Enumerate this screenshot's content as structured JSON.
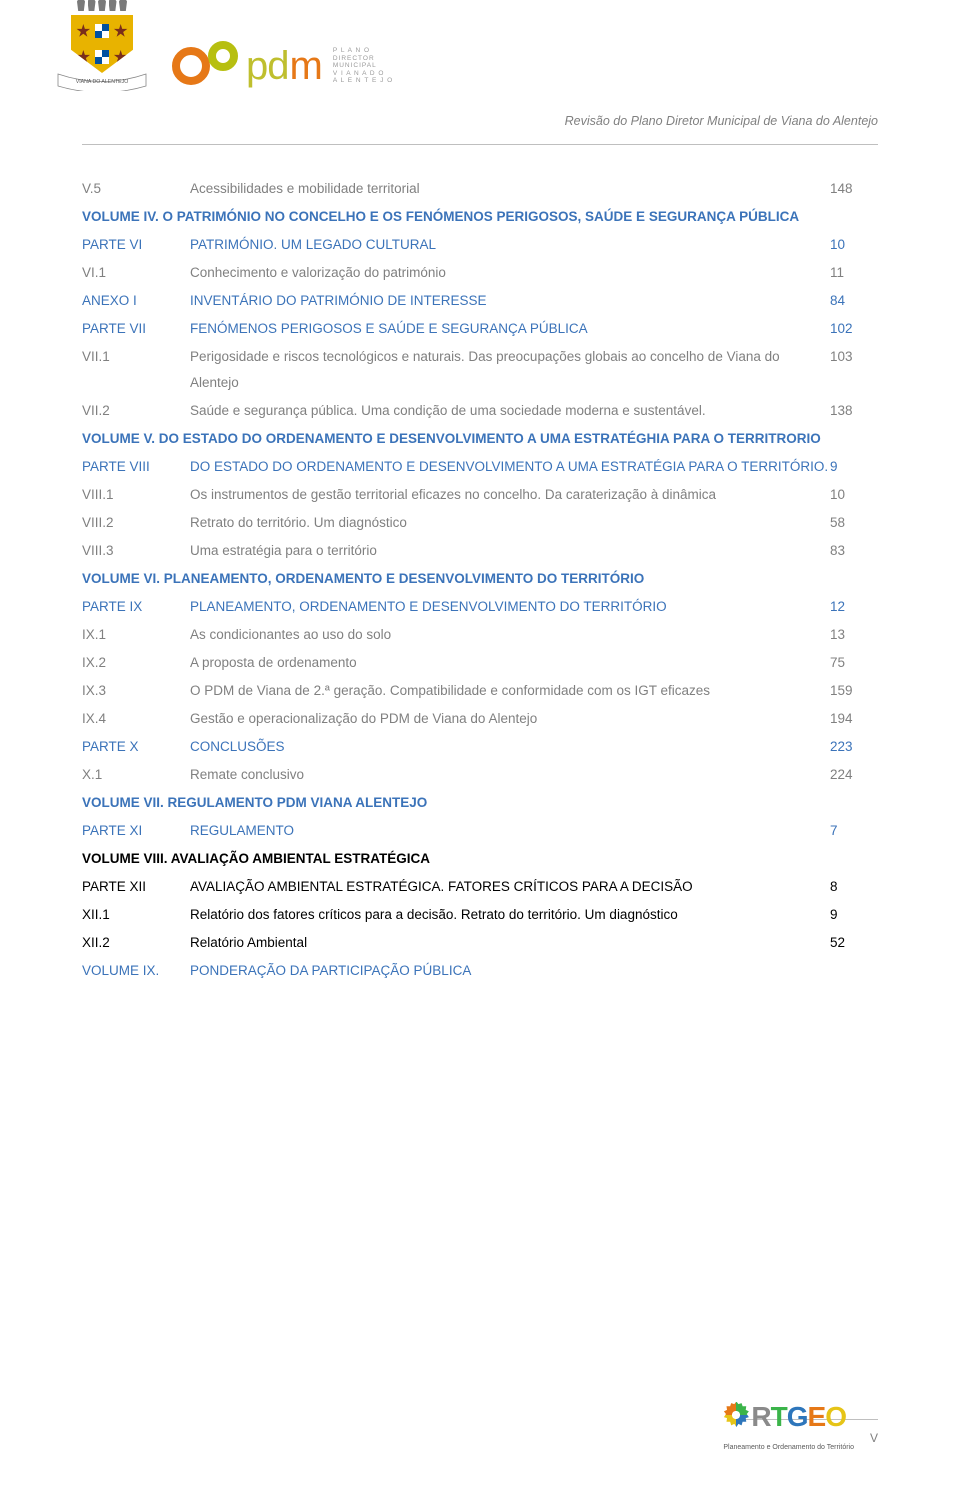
{
  "header": {
    "subtitle": "Revisão do Plano Diretor Municipal de Viana do Alentejo",
    "banner_text": "VIANA DO ALENTEJO",
    "pdm_letters": {
      "p": "p",
      "d": "d",
      "m": "m"
    },
    "plano_lines": [
      "P L A N O",
      "DIRECTOR",
      "MUNICIPAL",
      "V I A N A  D O",
      "A L E N T E J O"
    ]
  },
  "toc": [
    {
      "key": "V.5",
      "text": "Acessibilidades e mobilidade territorial",
      "page": "148",
      "style": "gray"
    },
    {
      "key": "",
      "text": "VOLUME IV. O PATRIMÓNIO NO CONCELHO E OS FENÓMENOS PERIGOSOS, SAÚDE E SEGURANÇA PÚBLICA",
      "page": "",
      "style": "blue-header-span"
    },
    {
      "key": "PARTE VI",
      "text": "PATRIMÓNIO. UM LEGADO CULTURAL",
      "page": "10",
      "style": "blue"
    },
    {
      "key": "VI.1",
      "text": "Conhecimento e valorização do património",
      "page": "11",
      "style": "gray"
    },
    {
      "key": "ANEXO I",
      "text": "INVENTÁRIO DO PATRIMÓNIO DE INTERESSE",
      "page": "84",
      "style": "blue"
    },
    {
      "key": "PARTE VII",
      "text": "FENÓMENOS PERIGOSOS E SAÚDE E SEGURANÇA PÚBLICA",
      "page": "102",
      "style": "blue"
    },
    {
      "key": "VII.1",
      "text": "Perigosidade e riscos tecnológicos e naturais. Das preocupações globais ao concelho de Viana do Alentejo",
      "page": "103",
      "style": "gray"
    },
    {
      "key": "VII.2",
      "text": "Saúde e segurança pública. Uma condição de uma sociedade moderna e sustentável.",
      "page": "138",
      "style": "gray"
    },
    {
      "key": "",
      "text": "VOLUME V. DO ESTADO DO ORDENAMENTO E DESENVOLVIMENTO A UMA ESTRATÉGHIA PARA O TERRITRORIO",
      "page": "",
      "style": "blue-header-span"
    },
    {
      "key": "PARTE VIII",
      "text": "DO ESTADO DO ORDENAMENTO E DESENVOLVIMENTO A UMA ESTRATÉGIA PARA O TERRITÓRIO.",
      "page": "9",
      "style": "blue"
    },
    {
      "key": "VIII.1",
      "text": "Os instrumentos de gestão territorial eficazes no concelho. Da caraterização à dinâmica",
      "page": "10",
      "style": "gray"
    },
    {
      "key": "VIII.2",
      "text": "Retrato do território. Um diagnóstico",
      "page": "58",
      "style": "gray"
    },
    {
      "key": "VIII.3",
      "text": "Uma estratégia para o território",
      "page": "83",
      "style": "gray"
    },
    {
      "key": "",
      "text": "VOLUME VI. PLANEAMENTO, ORDENAMENTO E DESENVOLVIMENTO DO TERRITÓRIO",
      "page": "",
      "style": "blue-header-span"
    },
    {
      "key": "PARTE IX",
      "text": "PLANEAMENTO, ORDENAMENTO E DESENVOLVIMENTO DO TERRITÓRIO",
      "page": "12",
      "style": "blue"
    },
    {
      "key": "IX.1",
      "text": "As condicionantes ao uso do solo",
      "page": "13",
      "style": "gray"
    },
    {
      "key": "IX.2",
      "text": "A proposta de ordenamento",
      "page": "75",
      "style": "gray"
    },
    {
      "key": "IX.3",
      "text": "O PDM de Viana de 2.ª geração. Compatibilidade e conformidade com os IGT eficazes",
      "page": "159",
      "style": "gray"
    },
    {
      "key": "IX.4",
      "text": "Gestão e operacionalização do PDM de Viana do Alentejo",
      "page": "194",
      "style": "gray"
    },
    {
      "key": "PARTE X",
      "text": "CONCLUSÕES",
      "page": "223",
      "style": "blue"
    },
    {
      "key": "X.1",
      "text": "Remate conclusivo",
      "page": "224",
      "style": "gray"
    },
    {
      "key": "",
      "text": "VOLUME VII. REGULAMENTO PDM VIANA ALENTEJO",
      "page": "",
      "style": "blue-header-span"
    },
    {
      "key": "PARTE XI",
      "text": "REGULAMENTO",
      "page": "7",
      "style": "blue"
    },
    {
      "key": "",
      "text": "VOLUME VIII. AVALIAÇÃO AMBIENTAL ESTRATÉGICA",
      "page": "",
      "style": "black-header-span"
    },
    {
      "key": "PARTE XII",
      "text": "AVALIAÇÃO AMBIENTAL ESTRATÉGICA. FATORES CRÍTICOS PARA A DECISÃO",
      "page": "8",
      "style": "black"
    },
    {
      "key": "XII.1",
      "text": "Relatório dos fatores críticos para a decisão. Retrato do território. Um diagnóstico",
      "page": "9",
      "style": "black-body"
    },
    {
      "key": "XII.2",
      "text": "Relatório Ambiental",
      "page": "52",
      "style": "black-body"
    },
    {
      "key": "VOLUME IX.",
      "text": "PONDERAÇÃO DA PARTICIPAÇÃO PÚBLICA",
      "page": "",
      "style": "blue"
    }
  ],
  "footer": {
    "brand": {
      "r": "R",
      "t": "T",
      "g": "G",
      "e": "E",
      "o": "O"
    },
    "brand_sub": "Planeamento e Ordenamento do Território",
    "page_number": "V"
  },
  "colors": {
    "gray": "#808080",
    "blue": "#3b73b9",
    "black": "#000000",
    "orange": "#e67817",
    "olive": "#b7bf10",
    "gold": "#e8b300"
  }
}
